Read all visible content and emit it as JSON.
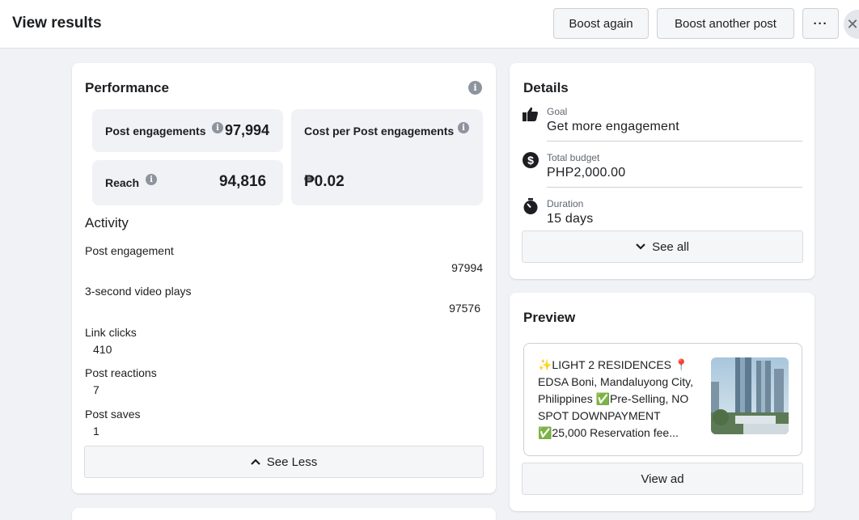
{
  "header": {
    "title": "View results",
    "boost_again": "Boost again",
    "boost_another": "Boost another post",
    "more": "···",
    "close": "✕"
  },
  "performance": {
    "title": "Performance",
    "info": "i",
    "metrics": {
      "post_engagements_label": "Post engagements",
      "post_engagements_value": "97,994",
      "cost_per_label": "Cost per Post engagements",
      "cost_per_value": "₱0.02",
      "reach_label": "Reach",
      "reach_value": "94,816"
    },
    "activity_title": "Activity",
    "activity": [
      {
        "label": "Post engagement",
        "value": "97994"
      },
      {
        "label": "3-second video plays",
        "value": "97576"
      },
      {
        "label": "Link clicks",
        "value": "410"
      },
      {
        "label": "Post reactions",
        "value": "7"
      },
      {
        "label": "Post saves",
        "value": "1"
      }
    ],
    "see_less": "See Less"
  },
  "details": {
    "title": "Details",
    "rows": [
      {
        "icon": "thumbs-up-icon",
        "label": "Goal",
        "value": "Get more engagement"
      },
      {
        "icon": "dollar-icon",
        "label": "Total budget",
        "value": "PHP2,000.00"
      },
      {
        "icon": "stopwatch-icon",
        "label": "Duration",
        "value": "15 days"
      }
    ],
    "see_all": "See all"
  },
  "preview": {
    "title": "Preview",
    "text": "✨LIGHT 2 RESIDENCES 📍 EDSA Boni, Mandaluyong City, Philippines ✅Pre-Selling, NO SPOT DOWNPAYMENT ✅25,000 Reservation fee...",
    "view_ad": "View ad"
  },
  "colors": {
    "background": "#f0f2f5",
    "card": "#ffffff",
    "button": "#f5f6f7",
    "text": "#1c1e21",
    "muted": "#606770"
  }
}
